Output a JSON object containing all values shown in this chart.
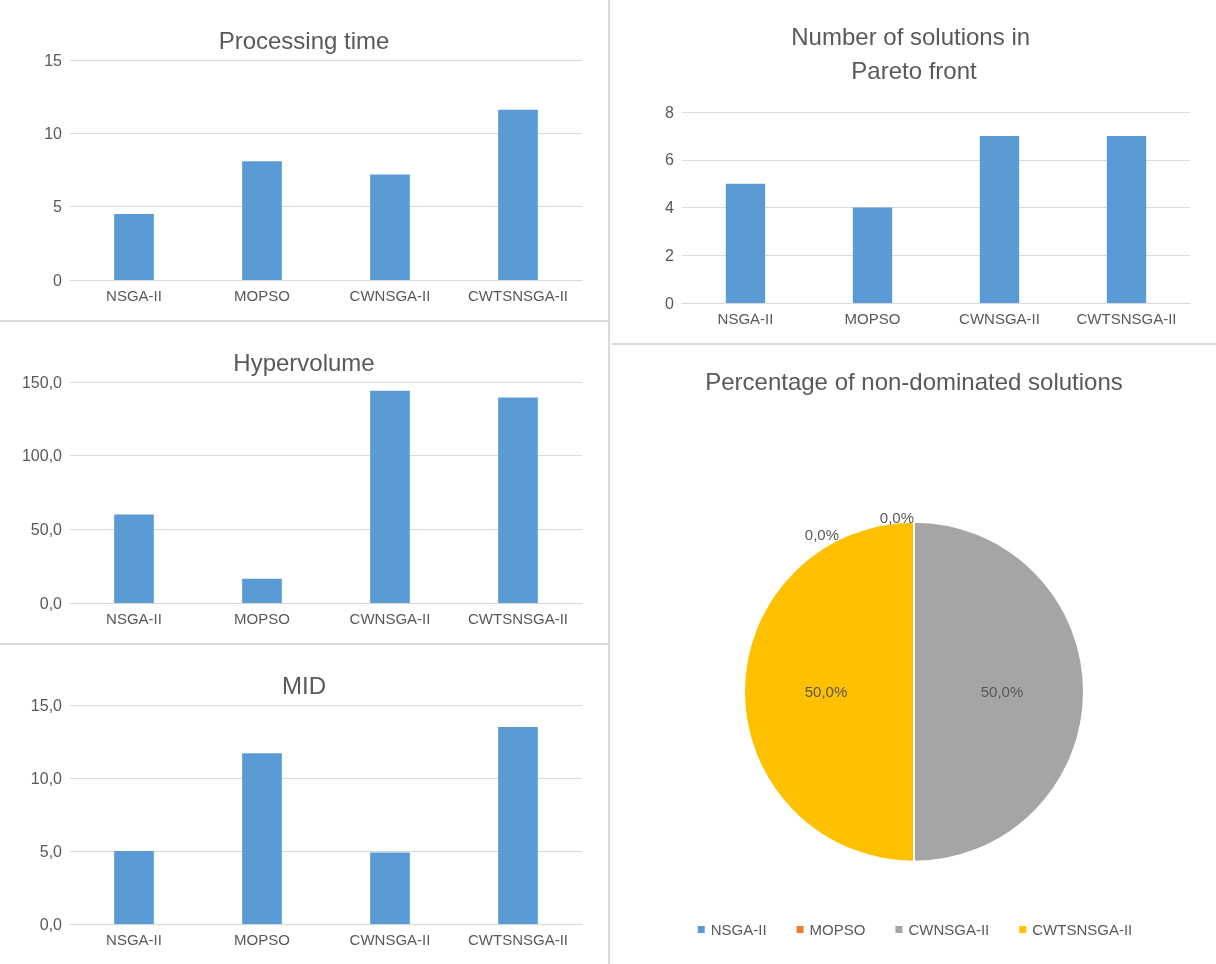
{
  "chart_data": [
    {
      "type": "bar",
      "title": "Processing time",
      "categories": [
        "NSGA-II",
        "MOPSO",
        "CWNSGA-II",
        "CWTSNSGA-II"
      ],
      "values": [
        4.5,
        8.1,
        7.2,
        11.6
      ],
      "color": "#5b9bd5",
      "ylim": [
        0,
        15
      ],
      "yticks": [
        0,
        5,
        10,
        15
      ],
      "grid": "y"
    },
    {
      "type": "bar",
      "title": "Number of solutions in Pareto front",
      "categories": [
        "NSGA-II",
        "MOPSO",
        "CWNSGA-II",
        "CWTSNSGA-II"
      ],
      "values": [
        5,
        4,
        7,
        7
      ],
      "color": "#5b9bd5",
      "ylim": [
        0,
        8
      ],
      "yticks": [
        0,
        2,
        4,
        6,
        8
      ],
      "grid": "y"
    },
    {
      "type": "bar",
      "title": "Hypervolume",
      "categories": [
        "NSGA-II",
        "MOPSO",
        "CWNSGA-II",
        "CWTSNSGA-II"
      ],
      "values": [
        60,
        16.5,
        144,
        139.5
      ],
      "color": "#5b9bd5",
      "ylim": [
        0,
        150
      ],
      "yticks": [
        {
          "value": 0,
          "label": "0,0"
        },
        {
          "value": 50,
          "label": "50,0"
        },
        {
          "value": 100,
          "label": "100,0"
        },
        {
          "value": 150,
          "label": "150,0"
        }
      ],
      "grid": "y"
    },
    {
      "type": "bar",
      "title": "MID",
      "categories": [
        "NSGA-II",
        "MOPSO",
        "CWNSGA-II",
        "CWTSNSGA-II"
      ],
      "values": [
        5.0,
        11.7,
        4.9,
        13.5
      ],
      "color": "#5b9bd5",
      "ylim": [
        0,
        15
      ],
      "yticks": [
        {
          "value": 0,
          "label": "0,0"
        },
        {
          "value": 5,
          "label": "5,0"
        },
        {
          "value": 10,
          "label": "10,0"
        },
        {
          "value": 15,
          "label": "15,0"
        }
      ],
      "grid": "y"
    },
    {
      "type": "pie",
      "title": "Percentage of non-dominated solutions",
      "categories": [
        "NSGA-II",
        "MOPSO",
        "CWNSGA-II",
        "CWTSNSGA-II"
      ],
      "values": [
        0,
        0,
        50,
        50
      ],
      "colors": [
        "#5b9bd5",
        "#ed7d31",
        "#a5a5a5",
        "#ffc000"
      ],
      "value_labels": [
        "0,0%",
        "0,0%",
        "50,0%",
        "50,0%"
      ],
      "legend": "bottom"
    }
  ]
}
